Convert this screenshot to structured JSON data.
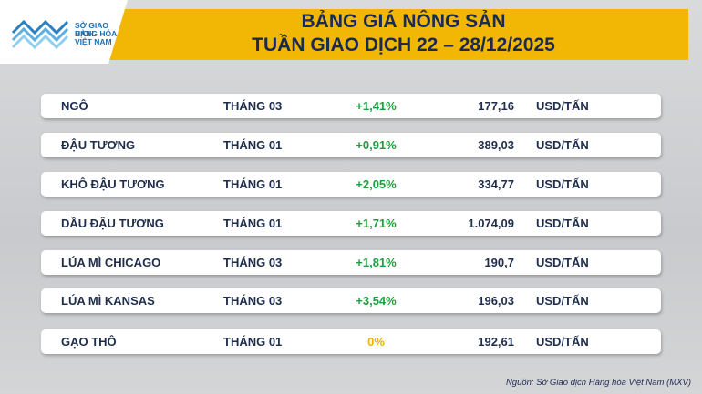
{
  "header": {
    "logo": [
      "SỞ GIAO DỊCH",
      "HÀNG HÓA",
      "VIỆT NAM"
    ],
    "title": [
      "BẢNG GIÁ NÔNG SẢN",
      "TUẦN GIAO DỊCH 22 – 28/12/2025"
    ]
  },
  "table": {
    "rows": [
      [
        "NGÔ",
        "THÁNG 03",
        "+1,41%",
        "177,16",
        "USD/TẤN"
      ],
      [
        "ĐẬU TƯƠNG",
        "THÁNG 01",
        "+0,91%",
        "389,03",
        "USD/TẤN"
      ],
      [
        "KHÔ ĐẬU TƯƠNG",
        "THÁNG 01",
        "+2,05%",
        "334,77",
        "USD/TẤN"
      ],
      [
        "DẦU ĐẬU TƯƠNG",
        "THÁNG 01",
        "+1,71%",
        "1.074,09",
        "USD/TẤN"
      ],
      [
        "LÚA MÌ CHICAGO",
        "THÁNG 03",
        "+1,81%",
        "190,7",
        "USD/TẤN"
      ],
      [
        "LÚA MÌ KANSAS",
        "THÁNG 03",
        "+3,54%",
        "196,03",
        "USD/TẤN"
      ],
      [
        "GẠO THÔ",
        "THÁNG 01",
        "0%",
        "192,61",
        "USD/TẤN"
      ]
    ]
  },
  "source": "Nguồn: Sở Giao dịch Hàng hóa Việt Nam (MXV)"
}
